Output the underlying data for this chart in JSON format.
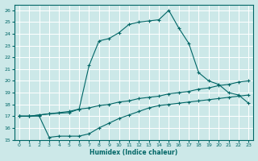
{
  "xlabel": "Humidex (Indice chaleur)",
  "ylabel": "",
  "bg_color": "#cce8e8",
  "grid_color": "#aacccc",
  "line_color": "#006666",
  "xlim": [
    -0.5,
    23.5
  ],
  "ylim": [
    15,
    26.5
  ],
  "yticks": [
    15,
    16,
    17,
    18,
    19,
    20,
    21,
    22,
    23,
    24,
    25,
    26
  ],
  "xticks": [
    0,
    1,
    2,
    3,
    4,
    5,
    6,
    7,
    8,
    9,
    10,
    11,
    12,
    13,
    14,
    15,
    16,
    17,
    18,
    19,
    20,
    21,
    22,
    23
  ],
  "curve1_x": [
    0,
    1,
    2,
    3,
    5,
    6,
    7,
    8,
    9,
    10,
    11,
    12,
    13,
    14,
    15,
    16,
    17,
    18,
    19,
    20,
    21,
    22,
    23
  ],
  "curve1_y": [
    17.0,
    17.0,
    17.1,
    17.2,
    17.3,
    17.6,
    21.3,
    23.4,
    23.6,
    24.1,
    24.8,
    25.0,
    25.1,
    25.2,
    26.0,
    24.5,
    23.2,
    20.7,
    20.0,
    19.7,
    19.0,
    18.8,
    18.1
  ],
  "curve2_x": [
    0,
    1,
    2,
    3,
    4,
    5,
    6,
    7,
    8,
    9,
    10,
    11,
    12,
    13,
    14,
    15,
    16,
    17,
    18,
    19,
    20,
    21,
    22,
    23
  ],
  "curve2_y": [
    17.0,
    17.0,
    17.1,
    17.2,
    17.3,
    17.4,
    17.6,
    17.7,
    17.9,
    18.0,
    18.2,
    18.3,
    18.5,
    18.6,
    18.7,
    18.9,
    19.0,
    19.1,
    19.3,
    19.4,
    19.6,
    19.7,
    19.9,
    20.0
  ],
  "curve3_x": [
    0,
    1,
    2,
    3,
    4,
    5,
    6,
    7,
    8,
    9,
    10,
    11,
    12,
    13,
    14,
    15,
    16,
    17,
    18,
    19,
    20,
    21,
    22,
    23
  ],
  "curve3_y": [
    17.0,
    17.0,
    17.0,
    15.2,
    15.3,
    15.3,
    15.3,
    15.5,
    16.0,
    16.4,
    16.8,
    17.1,
    17.4,
    17.7,
    17.9,
    18.0,
    18.1,
    18.2,
    18.3,
    18.4,
    18.5,
    18.6,
    18.7,
    18.8
  ]
}
